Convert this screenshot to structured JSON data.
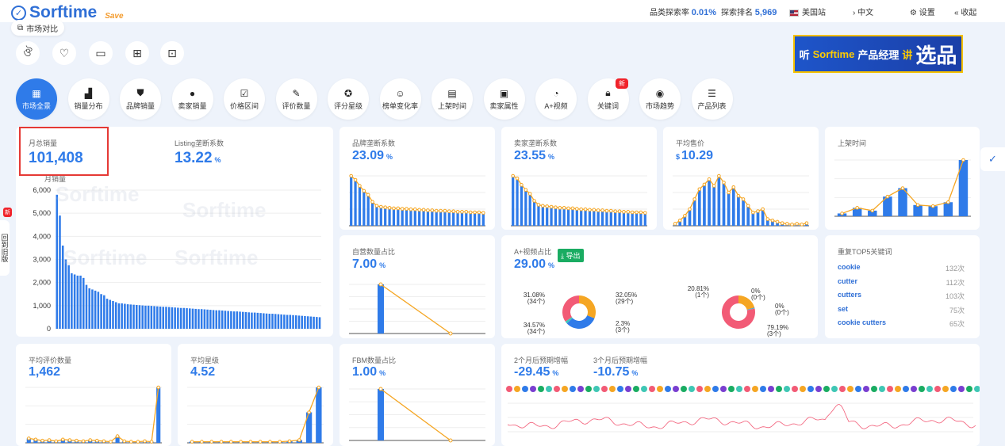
{
  "header": {
    "brand": "Sorftime",
    "save": "Save",
    "stats": [
      {
        "label": "品类探索率",
        "value": "0.01%"
      },
      {
        "label": "探索排名",
        "value": "5,969"
      }
    ],
    "site": "美国站",
    "lang": "中文",
    "settings": "设置",
    "collapse": "收起"
  },
  "toolbar": {
    "compare": "市场对比",
    "banner_prefix": "听",
    "banner_brand": "Sorftime",
    "banner_mid": "产品经理",
    "banner_hl": "讲",
    "banner_big": "选品"
  },
  "nav": [
    {
      "label": "市场全景",
      "icon": "grid-icon"
    },
    {
      "label": "销量分布",
      "icon": "bar-chart-icon"
    },
    {
      "label": "品牌销量",
      "icon": "shield-icon"
    },
    {
      "label": "卖家销量",
      "icon": "user-icon"
    },
    {
      "label": "价格区间",
      "icon": "price-icon"
    },
    {
      "label": "评价数量",
      "icon": "review-icon"
    },
    {
      "label": "评分星级",
      "icon": "star-icon"
    },
    {
      "label": "榜单变化率",
      "icon": "face-icon"
    },
    {
      "label": "上架时间",
      "icon": "calendar-icon"
    },
    {
      "label": "卖家属性",
      "icon": "store-icon"
    },
    {
      "label": "A+视频",
      "icon": "pie-icon"
    },
    {
      "label": "关键词",
      "icon": "lock-icon"
    },
    {
      "label": "市场趋势",
      "icon": "trend-icon"
    },
    {
      "label": "产品列表",
      "icon": "list-icon"
    }
  ],
  "nav_new": "新",
  "side": {
    "new": "新",
    "label": "回到旧版"
  },
  "cards": {
    "monthly_sales": {
      "title": "月总销量",
      "value": "101,408"
    },
    "listing": {
      "title": "Listing垄断系数",
      "value": "13.22",
      "unit": "%"
    },
    "brand": {
      "title": "品牌垄断系数",
      "value": "23.09",
      "unit": "%"
    },
    "seller": {
      "title": "卖家垄断系数",
      "value": "23.55",
      "unit": "%"
    },
    "price": {
      "title": "平均售价",
      "prefix": "$",
      "value": "10.29"
    },
    "listing_time": {
      "title": "上架时间"
    },
    "self_op": {
      "title": "自营数量占比",
      "value": "7.00",
      "unit": "%"
    },
    "aplus": {
      "title": "A+视频占比",
      "value": "29.00",
      "unit": "%",
      "export": "导出"
    },
    "top_kw": {
      "title": "重复TOP5关键词"
    },
    "avg_reviews": {
      "title": "平均评价数量",
      "value": "1,462"
    },
    "avg_rating": {
      "title": "平均星级",
      "value": "4.52"
    },
    "fbm": {
      "title": "FBM数量占比",
      "value": "1.00",
      "unit": "%"
    },
    "forecast": {
      "title2": "2个月后预期增幅",
      "value2": "-29.45",
      "title3": "3个月后预期增幅",
      "value3": "-10.75",
      "unit": "%"
    }
  },
  "keywords": [
    {
      "k": "cookie",
      "c": "132次"
    },
    {
      "k": "cutter",
      "c": "112次"
    },
    {
      "k": "cutters",
      "c": "103次"
    },
    {
      "k": "set",
      "c": "75次"
    },
    {
      "k": "cookie cutters",
      "c": "65次"
    }
  ],
  "watermark": "Sorftime",
  "chart_data": [
    {
      "type": "bar",
      "name": "monthly-sales-chart",
      "ylabel": "月销量",
      "ylim": [
        0,
        6000
      ],
      "yticks": [
        "6,000",
        "5,000",
        "4,000",
        "3,000",
        "2,000",
        "1,000",
        "0"
      ],
      "values": [
        5800,
        4900,
        3600,
        3000,
        2750,
        2400,
        2350,
        2300,
        2300,
        2200,
        1900,
        1750,
        1700,
        1650,
        1600,
        1500,
        1450,
        1300,
        1250,
        1200,
        1150,
        1100,
        1100,
        1080,
        1060,
        1050,
        1040,
        1030,
        1020,
        1010,
        1000,
        1000,
        990,
        980,
        970,
        960,
        950,
        950,
        940,
        930,
        920,
        910,
        900,
        900,
        890,
        880,
        870,
        860,
        850,
        850,
        840,
        830,
        820,
        810,
        800,
        800,
        790,
        780,
        770,
        760,
        750,
        750,
        740,
        730,
        720,
        710,
        700,
        700,
        690,
        680,
        670,
        660,
        650,
        650,
        640,
        630,
        620,
        610,
        600,
        600,
        590,
        580,
        570,
        560,
        550,
        540,
        530,
        520,
        510,
        500
      ]
    },
    {
      "type": "bar",
      "name": "brand-share",
      "values": [
        100,
        92,
        80,
        70,
        62,
        48,
        40,
        38,
        37,
        36,
        35,
        35,
        34,
        34,
        33,
        33,
        32,
        32,
        31,
        31,
        30,
        30,
        30,
        29,
        29,
        28,
        28,
        28,
        27,
        27,
        27,
        26
      ]
    },
    {
      "type": "bar",
      "name": "seller-share",
      "values": [
        100,
        95,
        82,
        72,
        64,
        50,
        42,
        40,
        39,
        38,
        37,
        36,
        36,
        35,
        35,
        34,
        33,
        33,
        32,
        32,
        31,
        31,
        30,
        30,
        29,
        29,
        28,
        28,
        27,
        27,
        27,
        26
      ]
    },
    {
      "type": "bar",
      "name": "price-dist",
      "values": [
        3,
        8,
        15,
        25,
        40,
        55,
        62,
        70,
        60,
        75,
        65,
        50,
        58,
        45,
        40,
        30,
        20,
        22,
        25,
        10,
        8,
        6,
        4,
        3,
        2,
        3,
        2,
        4
      ]
    },
    {
      "type": "bar",
      "name": "listing-time",
      "values": [
        5,
        15,
        10,
        35,
        50,
        20,
        18,
        25,
        100
      ]
    },
    {
      "type": "pie",
      "name": "aplus-video-1",
      "slices": [
        {
          "label": "31.08%",
          "sub": "(34个)",
          "value": 31.08,
          "color": "#f5a623"
        },
        {
          "label": "32.05%",
          "sub": "(29个)",
          "value": 32.05,
          "color": "#2f7be9"
        },
        {
          "label": "2.3%",
          "sub": "(3个)",
          "value": 2.3,
          "color": "#3fc7b5"
        },
        {
          "label": "34.57%",
          "sub": "(34个)",
          "value": 34.57,
          "color": "#f25b76"
        }
      ]
    },
    {
      "type": "pie",
      "name": "aplus-video-2",
      "slices": [
        {
          "label": "20.81%",
          "sub": "(1个)",
          "value": 20.81,
          "color": "#f5a623"
        },
        {
          "label": "0%",
          "sub": "(0个)",
          "value": 0.5,
          "color": "#2f7be9"
        },
        {
          "label": "0%",
          "sub": "(0个)",
          "value": 0.5,
          "color": "#3fc7b5"
        },
        {
          "label": "79.19%",
          "sub": "(3个)",
          "value": 79.19,
          "color": "#f25b76"
        }
      ]
    },
    {
      "type": "bar",
      "name": "avg-reviews",
      "values": [
        8,
        6,
        4,
        5,
        3,
        6,
        5,
        4,
        3,
        5,
        4,
        3,
        2,
        12,
        3,
        2,
        2,
        3,
        2,
        100
      ]
    },
    {
      "type": "bar",
      "name": "avg-rating",
      "values": [
        2,
        2,
        2,
        2,
        2,
        2,
        2,
        2,
        2,
        2,
        3,
        5,
        55,
        100
      ]
    },
    {
      "type": "line",
      "name": "self-op",
      "values": [
        100,
        0
      ]
    },
    {
      "type": "line",
      "name": "fbm",
      "values": [
        100,
        0
      ]
    }
  ]
}
